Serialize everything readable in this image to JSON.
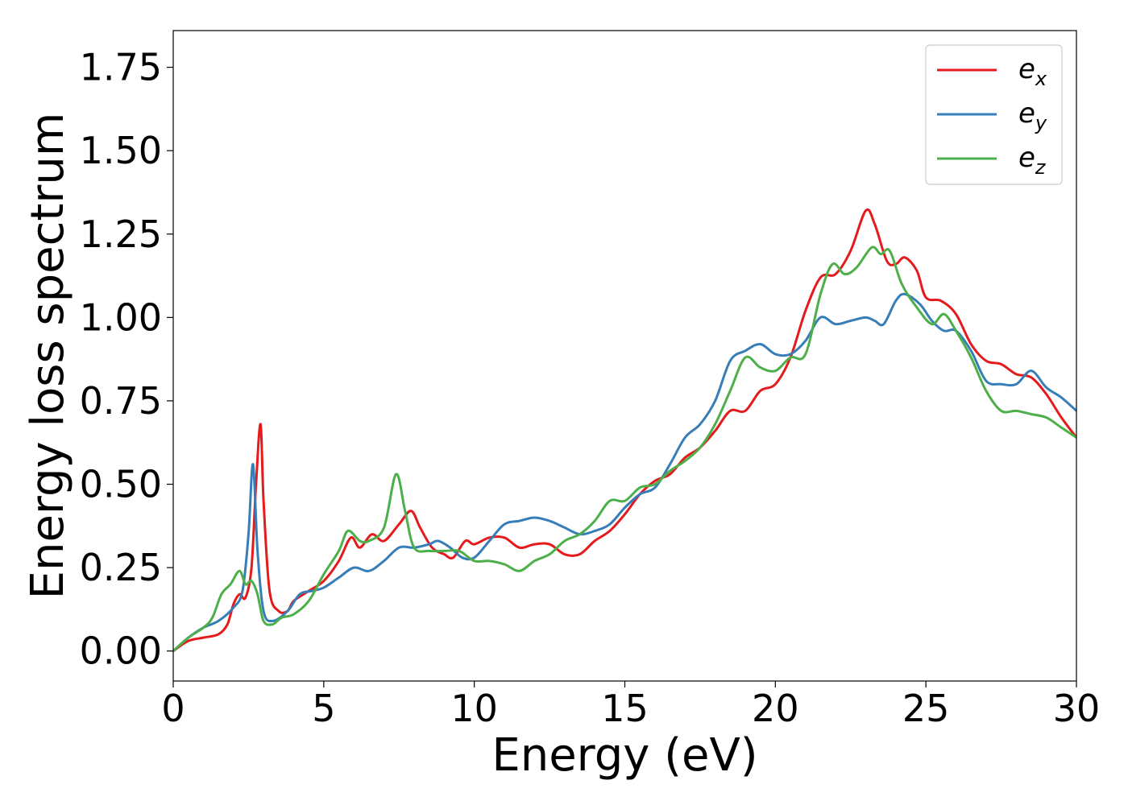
{
  "chart_data": {
    "type": "line",
    "title": "",
    "xlabel": "Energy (eV)",
    "ylabel": "Energy loss spectrum",
    "xlim": [
      0,
      30
    ],
    "ylim": [
      -0.09,
      1.86
    ],
    "xticks": [
      0,
      5,
      10,
      15,
      20,
      25,
      30
    ],
    "xtick_labels": [
      "0",
      "5",
      "10",
      "15",
      "20",
      "25",
      "30"
    ],
    "yticks": [
      0.0,
      0.25,
      0.5,
      0.75,
      1.0,
      1.25,
      1.5,
      1.75
    ],
    "ytick_labels": [
      "0.00",
      "0.25",
      "0.50",
      "0.75",
      "1.00",
      "1.25",
      "1.50",
      "1.75"
    ],
    "grid": false,
    "legend_position": "top-right",
    "series": [
      {
        "name": "e_x",
        "legend_base": "e",
        "legend_sub": "x",
        "color": "#e41a1c",
        "points": [
          [
            0,
            0
          ],
          [
            0.5,
            0.03
          ],
          [
            1.0,
            0.04
          ],
          [
            1.5,
            0.05
          ],
          [
            1.8,
            0.08
          ],
          [
            2.0,
            0.14
          ],
          [
            2.2,
            0.17
          ],
          [
            2.4,
            0.16
          ],
          [
            2.6,
            0.25
          ],
          [
            2.75,
            0.5
          ],
          [
            2.9,
            0.68
          ],
          [
            3.0,
            0.45
          ],
          [
            3.2,
            0.18
          ],
          [
            3.5,
            0.12
          ],
          [
            3.8,
            0.12
          ],
          [
            4.0,
            0.15
          ],
          [
            4.5,
            0.18
          ],
          [
            5.0,
            0.21
          ],
          [
            5.5,
            0.27
          ],
          [
            5.9,
            0.34
          ],
          [
            6.2,
            0.31
          ],
          [
            6.6,
            0.35
          ],
          [
            7.0,
            0.33
          ],
          [
            7.5,
            0.38
          ],
          [
            7.9,
            0.42
          ],
          [
            8.2,
            0.37
          ],
          [
            8.6,
            0.31
          ],
          [
            9.0,
            0.29
          ],
          [
            9.3,
            0.28
          ],
          [
            9.7,
            0.33
          ],
          [
            10.0,
            0.32
          ],
          [
            10.5,
            0.34
          ],
          [
            11.0,
            0.34
          ],
          [
            11.5,
            0.31
          ],
          [
            12.0,
            0.32
          ],
          [
            12.5,
            0.32
          ],
          [
            13.0,
            0.29
          ],
          [
            13.5,
            0.29
          ],
          [
            14.0,
            0.33
          ],
          [
            14.5,
            0.36
          ],
          [
            15.0,
            0.41
          ],
          [
            15.5,
            0.47
          ],
          [
            16.0,
            0.51
          ],
          [
            16.5,
            0.53
          ],
          [
            17.0,
            0.58
          ],
          [
            17.5,
            0.61
          ],
          [
            18.0,
            0.66
          ],
          [
            18.5,
            0.72
          ],
          [
            19.0,
            0.72
          ],
          [
            19.5,
            0.78
          ],
          [
            20.0,
            0.8
          ],
          [
            20.5,
            0.88
          ],
          [
            21.0,
            1.02
          ],
          [
            21.5,
            1.12
          ],
          [
            22.0,
            1.13
          ],
          [
            22.5,
            1.2
          ],
          [
            23.0,
            1.32
          ],
          [
            23.3,
            1.28
          ],
          [
            23.7,
            1.17
          ],
          [
            24.0,
            1.16
          ],
          [
            24.3,
            1.18
          ],
          [
            24.7,
            1.14
          ],
          [
            25.0,
            1.06
          ],
          [
            25.5,
            1.05
          ],
          [
            26.0,
            1.01
          ],
          [
            26.5,
            0.92
          ],
          [
            27.0,
            0.87
          ],
          [
            27.5,
            0.86
          ],
          [
            28.0,
            0.83
          ],
          [
            28.5,
            0.82
          ],
          [
            29.0,
            0.77
          ],
          [
            29.5,
            0.7
          ],
          [
            30.0,
            0.64
          ]
        ]
      },
      {
        "name": "e_y",
        "legend_base": "e",
        "legend_sub": "y",
        "color": "#377eb8",
        "points": [
          [
            0,
            0
          ],
          [
            0.5,
            0.04
          ],
          [
            1.0,
            0.07
          ],
          [
            1.5,
            0.09
          ],
          [
            2.0,
            0.13
          ],
          [
            2.3,
            0.18
          ],
          [
            2.5,
            0.35
          ],
          [
            2.65,
            0.56
          ],
          [
            2.8,
            0.3
          ],
          [
            3.0,
            0.12
          ],
          [
            3.3,
            0.09
          ],
          [
            3.8,
            0.12
          ],
          [
            4.2,
            0.17
          ],
          [
            4.6,
            0.18
          ],
          [
            5.0,
            0.19
          ],
          [
            5.5,
            0.22
          ],
          [
            6.0,
            0.25
          ],
          [
            6.5,
            0.24
          ],
          [
            7.0,
            0.27
          ],
          [
            7.5,
            0.31
          ],
          [
            8.0,
            0.31
          ],
          [
            8.5,
            0.32
          ],
          [
            8.8,
            0.33
          ],
          [
            9.2,
            0.31
          ],
          [
            9.6,
            0.28
          ],
          [
            10.0,
            0.28
          ],
          [
            10.5,
            0.33
          ],
          [
            11.0,
            0.38
          ],
          [
            11.5,
            0.39
          ],
          [
            12.0,
            0.4
          ],
          [
            12.5,
            0.39
          ],
          [
            13.0,
            0.37
          ],
          [
            13.5,
            0.35
          ],
          [
            14.0,
            0.36
          ],
          [
            14.5,
            0.38
          ],
          [
            15.0,
            0.43
          ],
          [
            15.5,
            0.47
          ],
          [
            16.0,
            0.49
          ],
          [
            16.5,
            0.56
          ],
          [
            17.0,
            0.64
          ],
          [
            17.5,
            0.68
          ],
          [
            18.0,
            0.75
          ],
          [
            18.5,
            0.87
          ],
          [
            19.0,
            0.9
          ],
          [
            19.5,
            0.92
          ],
          [
            20.0,
            0.89
          ],
          [
            20.5,
            0.89
          ],
          [
            21.0,
            0.93
          ],
          [
            21.5,
            1.0
          ],
          [
            22.0,
            0.98
          ],
          [
            22.5,
            0.99
          ],
          [
            23.0,
            1.0
          ],
          [
            23.3,
            0.99
          ],
          [
            23.6,
            0.98
          ],
          [
            24.0,
            1.05
          ],
          [
            24.3,
            1.07
          ],
          [
            24.8,
            1.04
          ],
          [
            25.2,
            0.99
          ],
          [
            25.6,
            0.96
          ],
          [
            26.0,
            0.96
          ],
          [
            26.5,
            0.9
          ],
          [
            27.0,
            0.81
          ],
          [
            27.5,
            0.8
          ],
          [
            28.0,
            0.8
          ],
          [
            28.5,
            0.84
          ],
          [
            29.0,
            0.79
          ],
          [
            29.5,
            0.76
          ],
          [
            30.0,
            0.72
          ]
        ]
      },
      {
        "name": "e_z",
        "legend_base": "e",
        "legend_sub": "z",
        "color": "#4daf4a",
        "points": [
          [
            0,
            0
          ],
          [
            0.5,
            0.04
          ],
          [
            1.0,
            0.07
          ],
          [
            1.3,
            0.1
          ],
          [
            1.6,
            0.17
          ],
          [
            1.9,
            0.2
          ],
          [
            2.2,
            0.24
          ],
          [
            2.4,
            0.2
          ],
          [
            2.6,
            0.21
          ],
          [
            2.8,
            0.17
          ],
          [
            3.0,
            0.09
          ],
          [
            3.3,
            0.08
          ],
          [
            3.6,
            0.1
          ],
          [
            4.0,
            0.11
          ],
          [
            4.5,
            0.15
          ],
          [
            5.0,
            0.23
          ],
          [
            5.5,
            0.3
          ],
          [
            5.8,
            0.36
          ],
          [
            6.2,
            0.33
          ],
          [
            6.5,
            0.33
          ],
          [
            7.0,
            0.37
          ],
          [
            7.4,
            0.53
          ],
          [
            7.7,
            0.42
          ],
          [
            8.0,
            0.31
          ],
          [
            8.5,
            0.3
          ],
          [
            9.0,
            0.3
          ],
          [
            9.5,
            0.3
          ],
          [
            10.0,
            0.27
          ],
          [
            10.5,
            0.27
          ],
          [
            11.0,
            0.26
          ],
          [
            11.5,
            0.24
          ],
          [
            12.0,
            0.27
          ],
          [
            12.5,
            0.29
          ],
          [
            13.0,
            0.33
          ],
          [
            13.5,
            0.35
          ],
          [
            14.0,
            0.39
          ],
          [
            14.5,
            0.45
          ],
          [
            15.0,
            0.45
          ],
          [
            15.5,
            0.49
          ],
          [
            16.0,
            0.5
          ],
          [
            16.5,
            0.54
          ],
          [
            17.0,
            0.57
          ],
          [
            17.5,
            0.61
          ],
          [
            18.0,
            0.68
          ],
          [
            18.5,
            0.78
          ],
          [
            19.0,
            0.88
          ],
          [
            19.5,
            0.85
          ],
          [
            20.0,
            0.84
          ],
          [
            20.5,
            0.88
          ],
          [
            21.0,
            0.89
          ],
          [
            21.5,
            1.07
          ],
          [
            21.9,
            1.16
          ],
          [
            22.3,
            1.13
          ],
          [
            22.7,
            1.15
          ],
          [
            23.2,
            1.21
          ],
          [
            23.5,
            1.19
          ],
          [
            23.8,
            1.2
          ],
          [
            24.2,
            1.1
          ],
          [
            24.7,
            1.03
          ],
          [
            25.2,
            0.98
          ],
          [
            25.6,
            1.01
          ],
          [
            26.0,
            0.96
          ],
          [
            26.5,
            0.88
          ],
          [
            27.0,
            0.78
          ],
          [
            27.5,
            0.72
          ],
          [
            28.0,
            0.72
          ],
          [
            28.5,
            0.71
          ],
          [
            29.0,
            0.7
          ],
          [
            29.5,
            0.67
          ],
          [
            30.0,
            0.64
          ]
        ]
      }
    ]
  }
}
